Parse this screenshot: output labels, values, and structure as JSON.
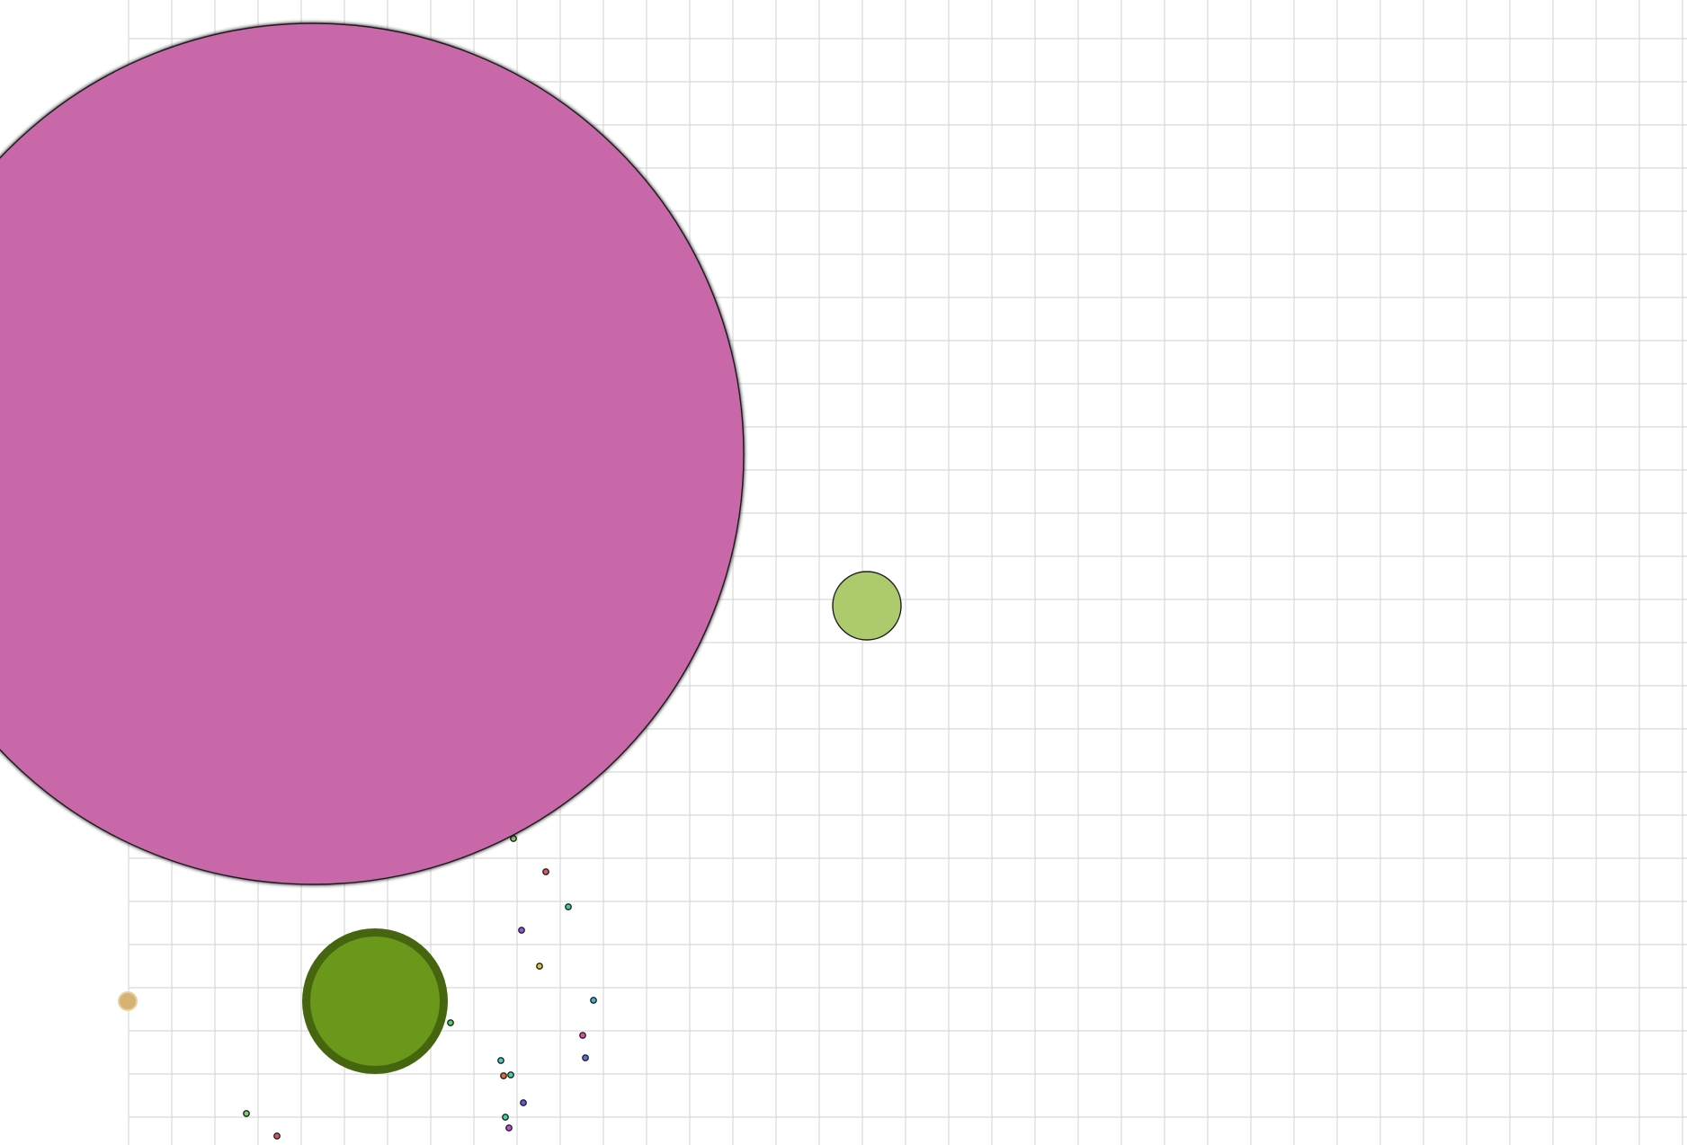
{
  "game": {
    "background": "#ffffff",
    "grid_color": "#d2d2d2"
  },
  "cells": [
    {
      "id": "big-magenta",
      "color": "#c868a9",
      "border": "#3a1a30",
      "role": "enemy-cell"
    },
    {
      "id": "light-green",
      "color": "#adca6c",
      "border": "#3a4a1e",
      "role": "enemy-cell"
    },
    {
      "id": "player-green",
      "color": "#6a981b",
      "border": "#46650f",
      "role": "player-cell"
    },
    {
      "id": "tan-blob",
      "color": "#d6b373",
      "border": "#e6cfa0",
      "role": "ejected-mass"
    }
  ],
  "food_colors": [
    "#7bd16b",
    "#e0555b",
    "#3fcf8a",
    "#9a4fe0",
    "#d6c23a",
    "#3fb6d6",
    "#4fd06a",
    "#d84fa5",
    "#5a6ee6",
    "#3fd0c6",
    "#e06a3a",
    "#3fd6a0",
    "#5a5ae6",
    "#3fd0b0",
    "#c04fd6"
  ]
}
